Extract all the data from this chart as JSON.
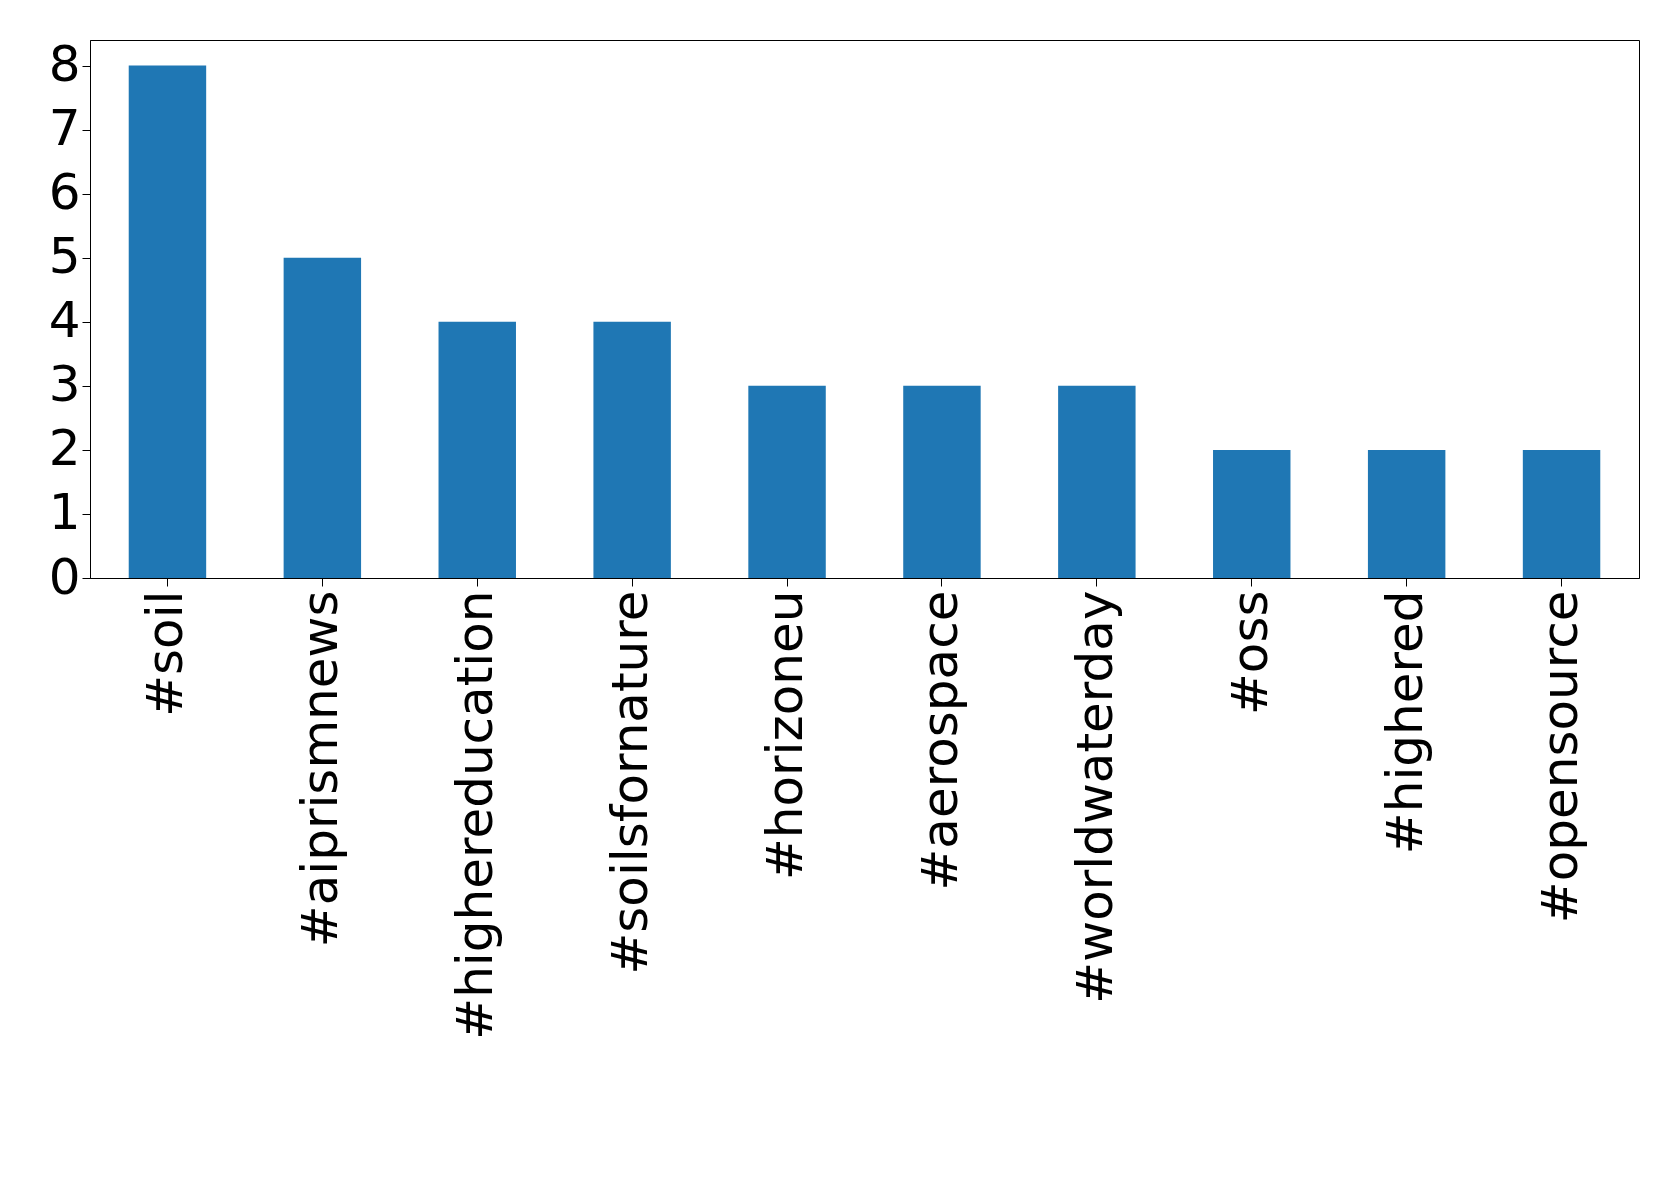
{
  "chart_data": {
    "type": "bar",
    "categories": [
      "#soil",
      "#aiprismnews",
      "#highereducation",
      "#soilsfornature",
      "#horizoneu",
      "#aerospace",
      "#worldwaterday",
      "#oss",
      "#highered",
      "#opensource"
    ],
    "values": [
      8,
      5,
      4,
      4,
      3,
      3,
      3,
      2,
      2,
      2
    ],
    "color": "#1f77b4",
    "ylim": [
      0,
      8.4
    ],
    "yticks": [
      0,
      1,
      2,
      3,
      4,
      5,
      6,
      7,
      8
    ],
    "grid": false
  }
}
